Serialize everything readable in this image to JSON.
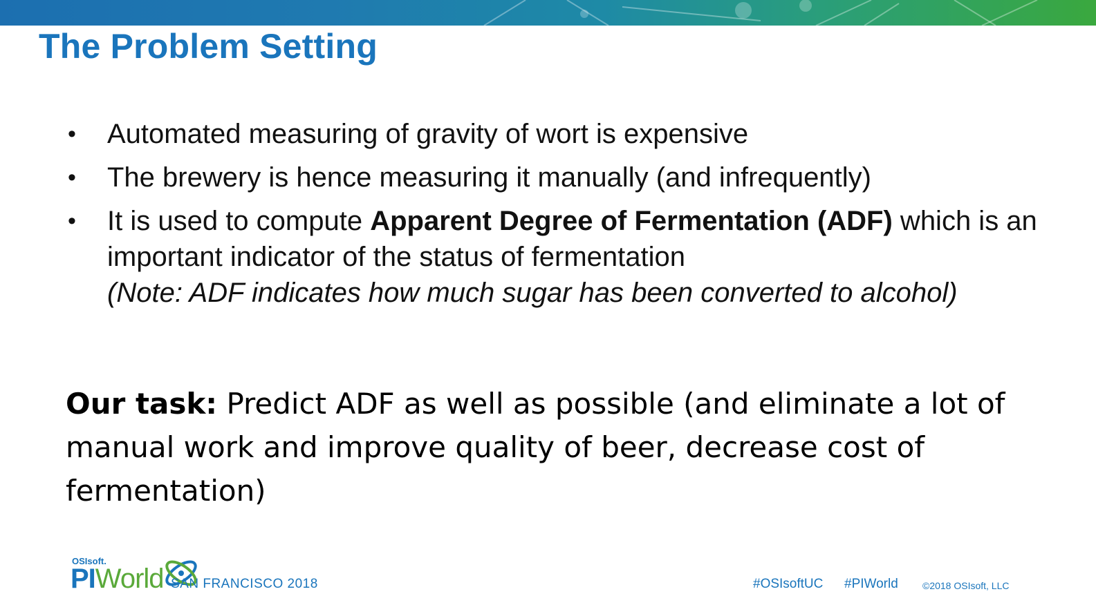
{
  "slide": {
    "title": "The Problem Setting",
    "bullets": [
      {
        "text": "Automated measuring of gravity of wort is expensive"
      },
      {
        "text": "The brewery is hence measuring it manually (and infrequently)"
      },
      {
        "before": "It is used to compute ",
        "bold": "Apparent Degree of Fermentation (ADF)",
        "after": " which is an important indicator of the status of fermentation",
        "note": "(Note: ADF indicates how much sugar has been converted to alcohol)"
      }
    ],
    "bullet_glyph": "•",
    "task": {
      "lead": "Our task:",
      "text": " Predict ADF as well as possible (and eliminate a lot of manual work and improve quality of beer, decrease cost of fermentation)"
    }
  },
  "footer": {
    "brand_small": "OSIsoft.",
    "brand_pi": "PI",
    "brand_world": "World",
    "city": "SAN FRANCISCO 2018",
    "hashtags": [
      "#OSIsoftUC",
      "#PIWorld"
    ],
    "copyright": "©2018 OSIsoft, LLC"
  },
  "colors": {
    "title_blue": "#1a75bc",
    "brand_green": "#5aa93a"
  }
}
